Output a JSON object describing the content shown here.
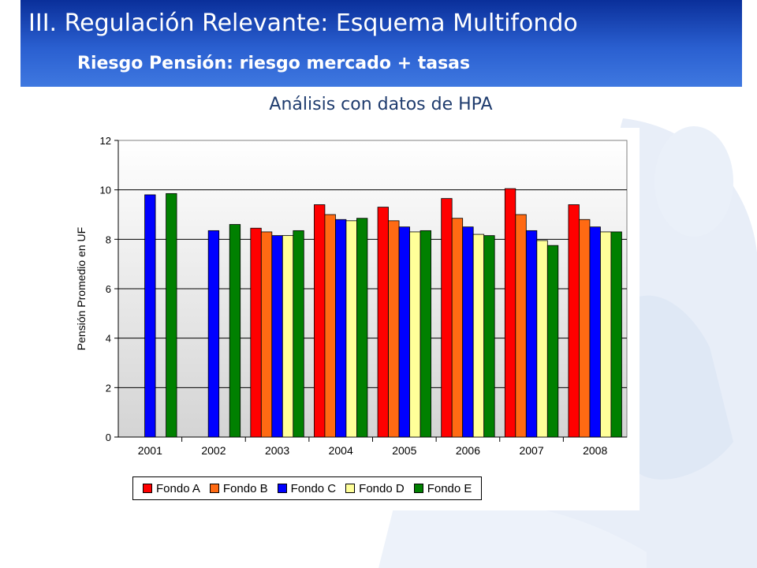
{
  "header": {
    "title": "III. Regulación Relevante: Esquema Multifondo",
    "subtitle": "Riesgo Pensión: riesgo mercado + tasas"
  },
  "caption": "Análisis con datos de HPA",
  "colors": {
    "header": "#1f4fc4",
    "decor": "#e6edf8"
  },
  "chart_data": {
    "type": "bar",
    "title": "",
    "xlabel": "",
    "ylabel": "Pensión Promedio en UF",
    "ylim": [
      0,
      12
    ],
    "yticks": [
      "0",
      "2",
      "4",
      "6",
      "8",
      "10",
      "12"
    ],
    "grid": true,
    "legend": "bottom",
    "categories": [
      "2001",
      "2002",
      "2003",
      "2004",
      "2005",
      "2006",
      "2007",
      "2008"
    ],
    "series": [
      {
        "name": "Fondo A",
        "color": "#ff0000",
        "values": [
          null,
          null,
          8.45,
          9.4,
          9.3,
          9.65,
          10.05,
          9.4
        ]
      },
      {
        "name": "Fondo B",
        "color": "#ff6a13",
        "values": [
          null,
          null,
          8.3,
          9.0,
          8.75,
          8.85,
          9.0,
          8.8
        ]
      },
      {
        "name": "Fondo C",
        "color": "#0000ff",
        "values": [
          9.8,
          8.35,
          8.15,
          8.8,
          8.5,
          8.5,
          8.35,
          8.5
        ]
      },
      {
        "name": "Fondo D",
        "color": "#ffff99",
        "values": [
          null,
          null,
          8.15,
          8.75,
          8.3,
          8.2,
          7.95,
          8.3
        ]
      },
      {
        "name": "Fondo E",
        "color": "#008000",
        "values": [
          9.85,
          8.6,
          8.35,
          8.85,
          8.35,
          8.15,
          7.75,
          8.3
        ]
      }
    ]
  }
}
